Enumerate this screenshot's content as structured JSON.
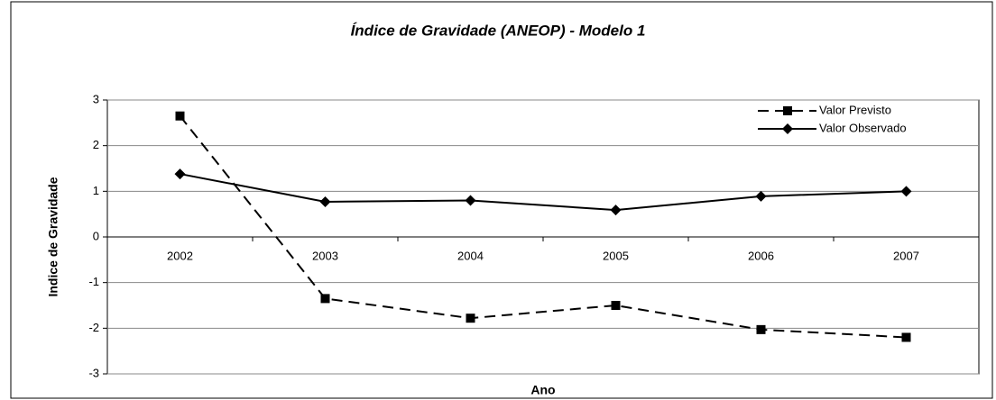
{
  "chart_data": {
    "type": "line",
    "title": "Índice de Gravidade (ANEOP) - Modelo 1",
    "x_label": "Ano",
    "y_label": "Indice de Gravidade",
    "categories": [
      "2002",
      "2003",
      "2004",
      "2005",
      "2006",
      "2007"
    ],
    "series": [
      {
        "name": "Valor Previsto",
        "color": "#000000",
        "dashed": true,
        "marker": "square",
        "values": [
          2.65,
          -1.35,
          -1.78,
          -1.5,
          -2.03,
          -2.2
        ]
      },
      {
        "name": "Valor Observado",
        "color": "#000000",
        "dashed": false,
        "marker": "diamond",
        "values": [
          1.38,
          0.77,
          0.8,
          0.59,
          0.89,
          1.0
        ]
      }
    ],
    "ylim": [
      -3,
      3
    ],
    "yticks": [
      -3,
      -2,
      -1,
      0,
      1,
      2,
      3
    ],
    "grid": true,
    "legend": "top-right"
  }
}
